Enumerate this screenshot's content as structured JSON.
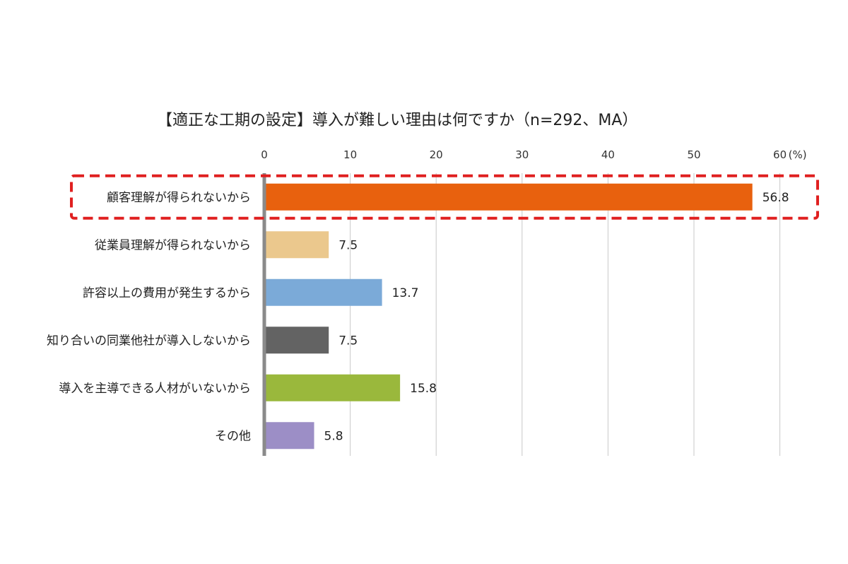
{
  "chart_data": {
    "type": "bar",
    "orientation": "horizontal",
    "title": "【適正な工期の設定】導入が難しい理由は何ですか（n=292、MA）",
    "unit_label": "(%)",
    "xlim": [
      0,
      60
    ],
    "ticks": [
      0,
      10,
      20,
      30,
      40,
      50,
      60
    ],
    "grid": true,
    "categories": [
      "顧客理解が得られないから",
      "従業員理解が得られないから",
      "許容以上の費用が発生するから",
      "知り合いの同業他社が導入しないから",
      "導入を主導できる人材がいないから",
      "その他"
    ],
    "values": [
      56.8,
      7.5,
      13.7,
      7.5,
      15.8,
      5.8
    ],
    "value_labels": [
      "56.8",
      "7.5",
      "13.7",
      "7.5",
      "15.8",
      "5.8"
    ],
    "colors": [
      "#E8610E",
      "#EBC88D",
      "#7BAAD8",
      "#636363",
      "#9AB83C",
      "#9C8EC6"
    ],
    "highlight_index": 0,
    "highlight_color": "#E02020"
  }
}
